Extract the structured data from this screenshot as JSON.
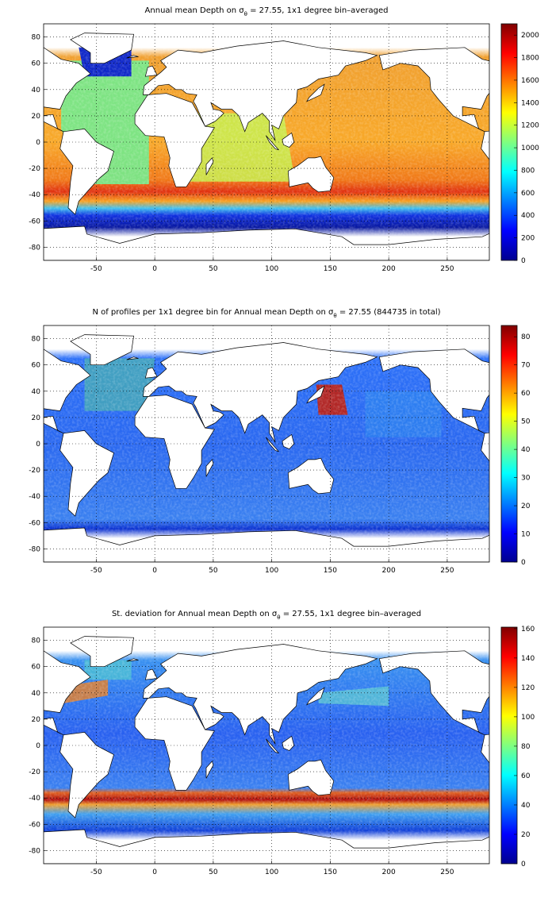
{
  "chart_data": [
    {
      "type": "heatmap",
      "title": [
        "Annual mean Depth on σ",
        "θ",
        " = 27.55, 1x1 degree bin–averaged"
      ],
      "xlim": [
        -95,
        286
      ],
      "ylim": [
        -90,
        90
      ],
      "xticks": [
        -50,
        0,
        50,
        100,
        150,
        200,
        250
      ],
      "yticks": [
        -80,
        -60,
        -40,
        -20,
        0,
        20,
        40,
        60,
        80
      ],
      "grid": true,
      "colormap": "jet",
      "clim": [
        0,
        2100
      ],
      "cticks": [
        0,
        200,
        400,
        600,
        800,
        1000,
        1200,
        1400,
        1600,
        1800,
        2000
      ]
    },
    {
      "type": "heatmap",
      "title": [
        "N of profiles per 1x1 degree bin for Annual mean Depth on σ",
        "θ",
        " = 27.55 (844735 in total)"
      ],
      "xlim": [
        -95,
        286
      ],
      "ylim": [
        -90,
        90
      ],
      "xticks": [
        -50,
        0,
        50,
        100,
        150,
        200,
        250
      ],
      "yticks": [
        -80,
        -60,
        -40,
        -20,
        0,
        20,
        40,
        60,
        80
      ],
      "grid": true,
      "colormap": "jet",
      "clim": [
        0,
        84
      ],
      "cticks": [
        0,
        10,
        20,
        30,
        40,
        50,
        60,
        70,
        80
      ]
    },
    {
      "type": "heatmap",
      "title": [
        "St. deviation for Annual mean Depth on σ",
        "θ",
        " = 27.55, 1x1 degree bin–averaged"
      ],
      "xlim": [
        -95,
        286
      ],
      "ylim": [
        -90,
        90
      ],
      "xticks": [
        -50,
        0,
        50,
        100,
        150,
        200,
        250
      ],
      "yticks": [
        -80,
        -60,
        -40,
        -20,
        0,
        20,
        40,
        60,
        80
      ],
      "grid": true,
      "colormap": "jet",
      "clim": [
        0,
        161
      ],
      "cticks": [
        0,
        20,
        40,
        60,
        80,
        100,
        120,
        140,
        160
      ]
    }
  ]
}
